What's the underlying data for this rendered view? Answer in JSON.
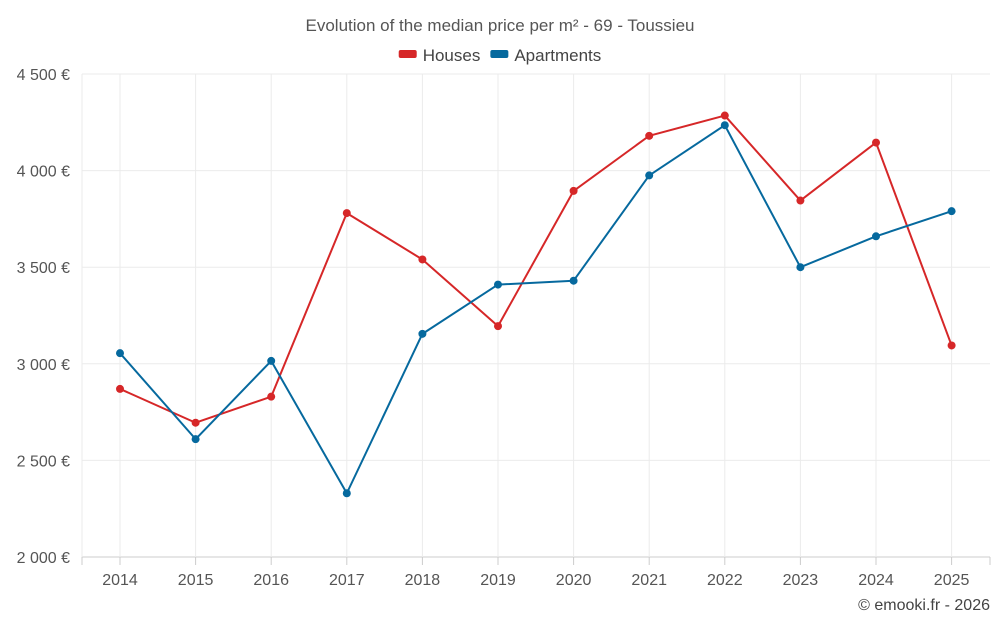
{
  "chart_data": {
    "type": "line",
    "title": "Evolution of the median price per m² - 69 - Toussieu",
    "xlabel": "",
    "ylabel": "",
    "categories": [
      "2014",
      "2015",
      "2016",
      "2017",
      "2018",
      "2019",
      "2020",
      "2021",
      "2022",
      "2023",
      "2024",
      "2025"
    ],
    "ylim": [
      2000,
      4500
    ],
    "yticks": [
      2000,
      2500,
      3000,
      3500,
      4000,
      4500
    ],
    "ytick_labels": [
      "2 000 €",
      "2 500 €",
      "3 000 €",
      "3 500 €",
      "4 000 €",
      "4 500 €"
    ],
    "grid": true,
    "legend_position": "top-center",
    "series": [
      {
        "name": "Houses",
        "color": "#d62728",
        "values": [
          2870,
          2695,
          2830,
          3780,
          3540,
          3195,
          3895,
          4180,
          4285,
          3845,
          4145,
          3095
        ]
      },
      {
        "name": "Apartments",
        "color": "#06699e",
        "values": [
          3055,
          2610,
          3015,
          2330,
          3155,
          3410,
          3430,
          3975,
          4235,
          3500,
          3660,
          3790
        ]
      }
    ],
    "credit": "© emooki.fr - 2026"
  }
}
